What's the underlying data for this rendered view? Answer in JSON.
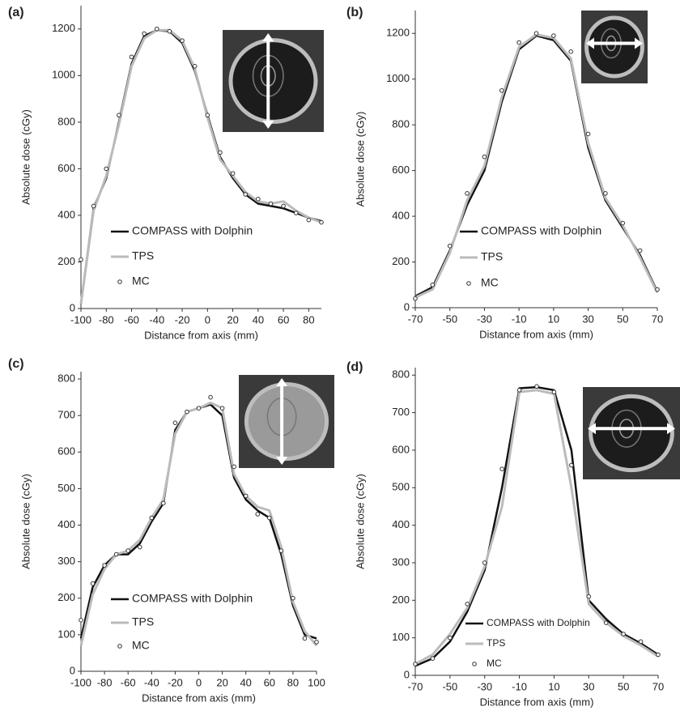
{
  "chart_data": [
    {
      "type": "line",
      "label": "(a)",
      "xlabel": "Distance from axis (mm)",
      "ylabel": "Absolute dose (cGy)",
      "x": [
        -100,
        -90,
        -80,
        -70,
        -60,
        -50,
        -40,
        -30,
        -20,
        -10,
        0,
        10,
        20,
        30,
        40,
        50,
        60,
        70,
        80,
        90
      ],
      "series": [
        {
          "name": "COMPASS with Dolphin",
          "color": "#111111",
          "mode": "line",
          "values": [
            20,
            430,
            560,
            800,
            1050,
            1170,
            1195,
            1190,
            1140,
            1020,
            830,
            650,
            560,
            490,
            450,
            440,
            430,
            410,
            390,
            375
          ]
        },
        {
          "name": "TPS",
          "color": "#bbbbbb",
          "mode": "line",
          "values": [
            20,
            420,
            570,
            790,
            1040,
            1160,
            1195,
            1195,
            1150,
            1030,
            820,
            640,
            570,
            500,
            460,
            450,
            460,
            420,
            390,
            370
          ]
        },
        {
          "name": "MC",
          "color": "#333333",
          "mode": "markers",
          "values": [
            210,
            440,
            600,
            830,
            1080,
            1180,
            1200,
            1190,
            1150,
            1040,
            830,
            670,
            580,
            490,
            470,
            450,
            440,
            410,
            380,
            370
          ]
        }
      ],
      "xlim": [
        -100,
        90
      ],
      "ylim": [
        0,
        1300
      ],
      "xticks": [
        -100,
        -80,
        -60,
        -40,
        -20,
        0,
        20,
        40,
        60,
        80
      ],
      "yticks": [
        0,
        200,
        400,
        600,
        800,
        1000,
        1200
      ]
    },
    {
      "type": "line",
      "label": "(b)",
      "xlabel": "Distance from axis (mm)",
      "ylabel": "Absolute dose (cGy)",
      "x": [
        -70,
        -60,
        -50,
        -40,
        -30,
        -20,
        -10,
        0,
        10,
        20,
        30,
        40,
        50,
        60,
        70
      ],
      "series": [
        {
          "name": "COMPASS with Dolphin",
          "color": "#111111",
          "mode": "line",
          "values": [
            50,
            90,
            250,
            450,
            600,
            900,
            1130,
            1190,
            1170,
            1080,
            700,
            470,
            350,
            230,
            70
          ]
        },
        {
          "name": "TPS",
          "color": "#bbbbbb",
          "mode": "line",
          "values": [
            45,
            80,
            240,
            470,
            620,
            920,
            1140,
            1195,
            1180,
            1090,
            720,
            480,
            360,
            220,
            65
          ]
        },
        {
          "name": "MC",
          "color": "#333333",
          "mode": "markers",
          "values": [
            40,
            100,
            270,
            500,
            660,
            950,
            1160,
            1200,
            1190,
            1120,
            760,
            500,
            370,
            250,
            80
          ]
        }
      ],
      "xlim": [
        -70,
        70
      ],
      "ylim": [
        0,
        1300
      ],
      "xticks": [
        -70,
        -50,
        -30,
        -10,
        10,
        30,
        50,
        70
      ],
      "yticks": [
        0,
        200,
        400,
        600,
        800,
        1000,
        1200
      ]
    },
    {
      "type": "line",
      "label": "(c)",
      "xlabel": "Distance from axis (mm)",
      "ylabel": "Absolute dose (cGy)",
      "x": [
        -100,
        -90,
        -80,
        -70,
        -60,
        -50,
        -40,
        -30,
        -20,
        -10,
        0,
        10,
        20,
        30,
        40,
        50,
        60,
        70,
        80,
        90,
        100
      ],
      "series": [
        {
          "name": "COMPASS with Dolphin",
          "color": "#111111",
          "mode": "line",
          "values": [
            90,
            230,
            290,
            320,
            320,
            350,
            410,
            460,
            660,
            710,
            720,
            730,
            700,
            530,
            470,
            440,
            420,
            320,
            180,
            100,
            90
          ]
        },
        {
          "name": "TPS",
          "color": "#bbbbbb",
          "mode": "line",
          "values": [
            70,
            210,
            280,
            320,
            330,
            360,
            420,
            470,
            650,
            710,
            720,
            735,
            720,
            540,
            480,
            450,
            440,
            340,
            190,
            110,
            70
          ]
        },
        {
          "name": "MC",
          "color": "#333333",
          "mode": "markers",
          "values": [
            140,
            240,
            290,
            320,
            330,
            340,
            420,
            460,
            680,
            710,
            720,
            750,
            720,
            560,
            480,
            430,
            420,
            330,
            200,
            90,
            80
          ]
        }
      ],
      "xlim": [
        -100,
        100
      ],
      "ylim": [
        0,
        820
      ],
      "xticks": [
        -100,
        -80,
        -60,
        -40,
        -20,
        0,
        20,
        40,
        60,
        80,
        100
      ],
      "yticks": [
        0,
        100,
        200,
        300,
        400,
        500,
        600,
        700,
        800
      ]
    },
    {
      "type": "line",
      "label": "(d)",
      "xlabel": "Distance from axis (mm)",
      "ylabel": "Absolute dose (cGy)",
      "x": [
        -70,
        -60,
        -50,
        -40,
        -30,
        -20,
        -10,
        0,
        10,
        20,
        30,
        40,
        50,
        60,
        70
      ],
      "series": [
        {
          "name": "COMPASS with Dolphin",
          "color": "#111111",
          "mode": "line",
          "values": [
            25,
            45,
            90,
            170,
            280,
            500,
            765,
            768,
            760,
            600,
            200,
            150,
            110,
            85,
            55
          ]
        },
        {
          "name": "TPS",
          "color": "#bbbbbb",
          "mode": "line",
          "values": [
            30,
            55,
            110,
            180,
            290,
            450,
            755,
            760,
            750,
            500,
            190,
            140,
            105,
            80,
            50
          ]
        },
        {
          "name": "MC",
          "color": "#333333",
          "mode": "markers",
          "values": [
            30,
            45,
            100,
            190,
            300,
            550,
            760,
            770,
            755,
            560,
            210,
            140,
            110,
            90,
            55
          ]
        }
      ],
      "xlim": [
        -70,
        70
      ],
      "ylim": [
        0,
        820
      ],
      "xticks": [
        -70,
        -50,
        -30,
        -10,
        10,
        30,
        50,
        70
      ],
      "yticks": [
        0,
        100,
        200,
        300,
        400,
        500,
        600,
        700,
        800
      ]
    }
  ]
}
